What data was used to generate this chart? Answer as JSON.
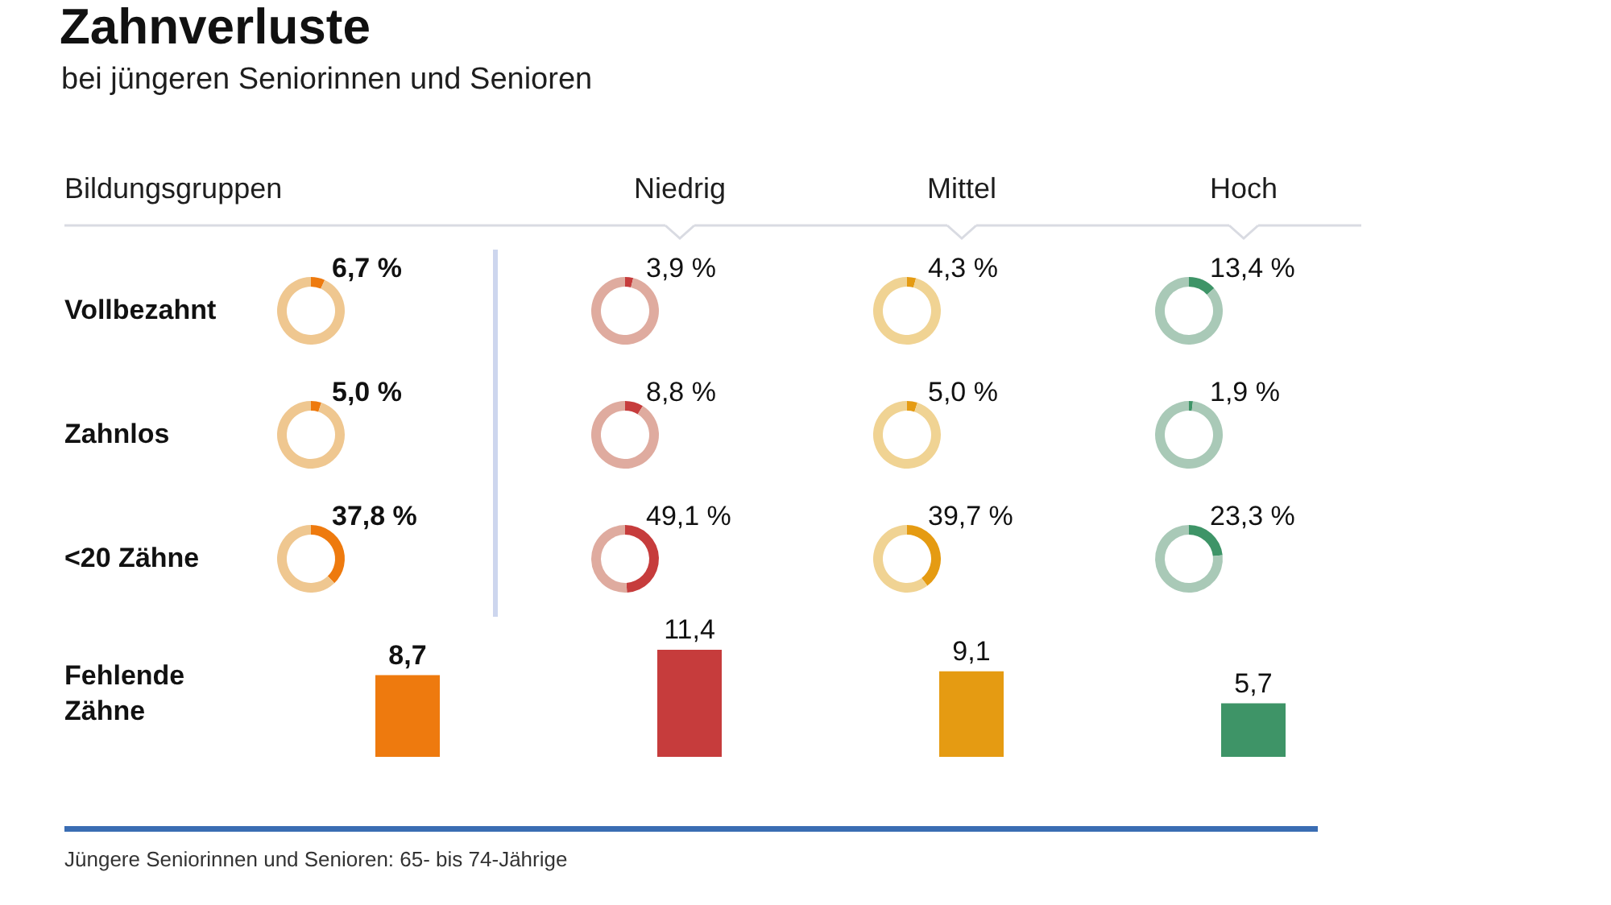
{
  "chart_data": [
    {
      "type": "other",
      "title": "Zahnverluste",
      "subtitle": "bei jüngeren Seniorinnen und Senioren",
      "xlabel": "Bildungsgruppen",
      "categories": [
        null,
        "Niedrig",
        "Mittel",
        "Hoch"
      ],
      "y_categories": [
        "Vollbezahnt",
        "Zahnlos",
        "<20 Zähne",
        "Fehlende Zähne"
      ],
      "annotations": [
        "Jüngere Seniorinnen und Senioren: 65- bis 74-Jährige"
      ]
    },
    {
      "type": "donut",
      "categories": [
        null,
        null
      ],
      "values": [
        6.7,
        93.3
      ],
      "colors": [
        "#ee7a0e",
        "#efc790"
      ],
      "value_labels": [
        "6,7 %",
        null
      ]
    },
    {
      "type": "donut",
      "categories": [
        null,
        null
      ],
      "values": [
        3.9,
        96.1
      ],
      "colors": [
        "#c63c3c",
        "#dfab9f"
      ],
      "value_labels": [
        "3,9 %",
        null
      ]
    },
    {
      "type": "donut",
      "categories": [
        null,
        null
      ],
      "values": [
        4.3,
        95.7
      ],
      "colors": [
        "#e59b12",
        "#f0d393"
      ],
      "value_labels": [
        "4,3 %",
        null
      ]
    },
    {
      "type": "donut",
      "categories": [
        null,
        null
      ],
      "values": [
        13.4,
        86.6
      ],
      "colors": [
        "#3e9467",
        "#a9c9b7"
      ],
      "value_labels": [
        "13,4 %",
        null
      ]
    },
    {
      "type": "donut",
      "categories": [
        null,
        null
      ],
      "values": [
        5.0,
        95.0
      ],
      "colors": [
        "#ee7a0e",
        "#efc790"
      ],
      "value_labels": [
        "5,0 %",
        null
      ]
    },
    {
      "type": "donut",
      "categories": [
        null,
        null
      ],
      "values": [
        8.8,
        91.2
      ],
      "colors": [
        "#c63c3c",
        "#dfab9f"
      ],
      "value_labels": [
        "8,8 %",
        null
      ]
    },
    {
      "type": "donut",
      "categories": [
        null,
        null
      ],
      "values": [
        5.0,
        95.0
      ],
      "colors": [
        "#e59b12",
        "#f0d393"
      ],
      "value_labels": [
        "5,0 %",
        null
      ]
    },
    {
      "type": "donut",
      "categories": [
        null,
        null
      ],
      "values": [
        1.9,
        98.1
      ],
      "colors": [
        "#3e9467",
        "#a9c9b7"
      ],
      "value_labels": [
        "1,9 %",
        null
      ]
    },
    {
      "type": "donut",
      "categories": [
        null,
        null
      ],
      "values": [
        37.8,
        62.2
      ],
      "colors": [
        "#ee7a0e",
        "#efc790"
      ],
      "value_labels": [
        "37,8 %",
        null
      ]
    },
    {
      "type": "donut",
      "categories": [
        null,
        null
      ],
      "values": [
        49.1,
        50.9
      ],
      "colors": [
        "#c63c3c",
        "#dfab9f"
      ],
      "value_labels": [
        "49,1 %",
        null
      ]
    },
    {
      "type": "donut",
      "categories": [
        null,
        null
      ],
      "values": [
        39.7,
        60.3
      ],
      "colors": [
        "#e59b12",
        "#f0d393"
      ],
      "value_labels": [
        "39,7 %",
        null
      ]
    },
    {
      "type": "donut",
      "categories": [
        null,
        null
      ],
      "values": [
        23.3,
        76.7
      ],
      "colors": [
        "#3e9467",
        "#a9c9b7"
      ],
      "value_labels": [
        "23,3 %",
        null
      ]
    },
    {
      "type": "bar",
      "categories": [
        null,
        null,
        null,
        null
      ],
      "values": [
        8.7,
        11.4,
        9.1,
        5.7
      ],
      "colors": [
        "#ee7a0e",
        "#c63c3c",
        "#e59b12",
        "#3e9467"
      ],
      "value_labels": [
        "8,7",
        "11,4",
        "9,1",
        "5,7"
      ],
      "ylim": [
        0,
        12
      ],
      "tick_labels": false
    }
  ]
}
